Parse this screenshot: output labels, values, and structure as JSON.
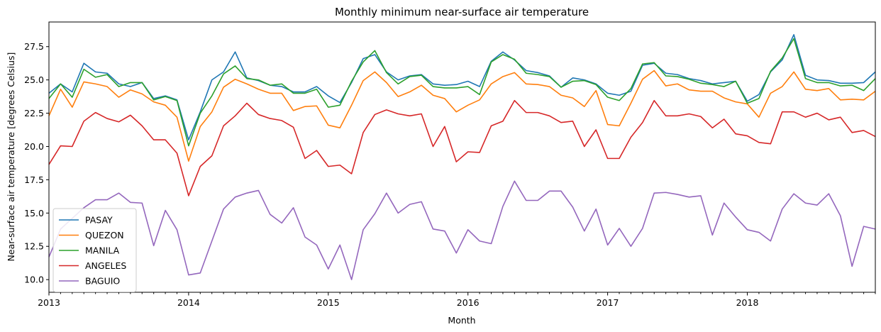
{
  "chart_data": {
    "type": "line",
    "title": "Monthly minimum near-surface air temperature",
    "xlabel": "Month",
    "ylabel": "Near-surface air temperature [degrees Celsius]",
    "x_start": "2013-01",
    "x_tick_labels": [
      "2013",
      "2014",
      "2015",
      "2016",
      "2017",
      "2018"
    ],
    "y_ticks": [
      10.0,
      12.5,
      15.0,
      17.5,
      20.0,
      22.5,
      25.0,
      27.5
    ],
    "y_tick_labels": [
      "10.0",
      "12.5",
      "15.0",
      "17.5",
      "20.0",
      "22.5",
      "25.0",
      "27.5"
    ],
    "ylim": [
      9.05,
      29.35
    ],
    "xlim": [
      "2013-01",
      "2018-12"
    ],
    "grid": false,
    "legend_position": "lower-left",
    "series": [
      {
        "name": "PASAY",
        "color": "#1f77b4",
        "values": [
          24.0,
          24.7,
          24.1,
          26.25,
          25.6,
          25.5,
          24.7,
          24.5,
          24.8,
          23.6,
          23.8,
          23.5,
          20.5,
          22.6,
          25.0,
          25.6,
          27.1,
          25.15,
          24.95,
          24.6,
          24.5,
          24.1,
          24.1,
          24.5,
          23.8,
          23.3,
          24.8,
          26.6,
          26.9,
          25.6,
          25.0,
          25.3,
          25.4,
          24.7,
          24.6,
          24.65,
          24.9,
          24.5,
          26.4,
          27.1,
          26.5,
          25.7,
          25.55,
          25.3,
          24.45,
          25.15,
          25.0,
          24.7,
          24.0,
          23.85,
          24.15,
          26.1,
          26.25,
          25.5,
          25.4,
          25.1,
          24.95,
          24.7,
          24.8,
          24.9,
          23.4,
          23.9,
          25.6,
          26.5,
          28.4,
          25.35,
          25.0,
          24.95,
          24.75,
          24.75,
          24.8,
          25.6
        ]
      },
      {
        "name": "QUEZON",
        "color": "#ff7f0e",
        "values": [
          22.3,
          24.3,
          22.95,
          24.85,
          24.7,
          24.5,
          23.7,
          24.25,
          23.95,
          23.35,
          23.1,
          22.2,
          18.9,
          21.5,
          22.6,
          24.45,
          25.05,
          24.7,
          24.3,
          24.0,
          24.0,
          22.7,
          23.0,
          23.05,
          21.6,
          21.4,
          23.1,
          24.95,
          25.6,
          24.8,
          23.75,
          24.1,
          24.6,
          23.85,
          23.6,
          22.6,
          23.1,
          23.5,
          24.7,
          25.25,
          25.55,
          24.7,
          24.65,
          24.5,
          23.85,
          23.65,
          23.0,
          24.2,
          21.65,
          21.55,
          23.25,
          25.05,
          25.7,
          24.55,
          24.7,
          24.25,
          24.15,
          24.15,
          23.65,
          23.35,
          23.2,
          22.2,
          24.0,
          24.5,
          25.6,
          24.3,
          24.2,
          24.35,
          23.5,
          23.55,
          23.5,
          24.15
        ]
      },
      {
        "name": "MANILA",
        "color": "#2ca02c",
        "values": [
          23.6,
          24.7,
          23.7,
          25.8,
          25.2,
          25.4,
          24.5,
          24.8,
          24.8,
          23.5,
          23.75,
          23.45,
          20.05,
          22.5,
          23.8,
          25.45,
          26.05,
          25.1,
          25.0,
          24.6,
          24.7,
          24.0,
          24.0,
          24.3,
          22.95,
          23.1,
          24.9,
          26.35,
          27.2,
          25.55,
          24.7,
          25.25,
          25.35,
          24.5,
          24.4,
          24.4,
          24.5,
          23.9,
          26.35,
          26.9,
          26.55,
          25.5,
          25.4,
          25.25,
          24.45,
          24.9,
          24.95,
          24.65,
          23.7,
          23.45,
          24.35,
          26.2,
          26.3,
          25.3,
          25.25,
          25.05,
          24.75,
          24.65,
          24.5,
          24.9,
          23.25,
          23.6,
          25.65,
          26.65,
          28.1,
          25.1,
          24.8,
          24.8,
          24.55,
          24.6,
          24.2,
          25.1
        ]
      },
      {
        "name": "ANGELES",
        "color": "#d62728",
        "values": [
          18.65,
          20.05,
          20.0,
          21.9,
          22.55,
          22.1,
          21.85,
          22.35,
          21.55,
          20.5,
          20.5,
          19.5,
          16.3,
          18.5,
          19.3,
          21.55,
          22.3,
          23.25,
          22.4,
          22.1,
          21.95,
          21.45,
          19.1,
          19.7,
          18.5,
          18.6,
          17.95,
          21.05,
          22.4,
          22.75,
          22.45,
          22.3,
          22.45,
          20.0,
          21.5,
          18.85,
          19.6,
          19.55,
          21.55,
          21.9,
          23.45,
          22.55,
          22.55,
          22.3,
          21.8,
          21.9,
          20.0,
          21.25,
          19.1,
          19.1,
          20.7,
          21.8,
          23.45,
          22.3,
          22.3,
          22.45,
          22.25,
          21.4,
          22.05,
          20.95,
          20.8,
          20.3,
          20.2,
          22.6,
          22.6,
          22.2,
          22.5,
          22.0,
          22.2,
          21.05,
          21.2,
          20.75
        ]
      },
      {
        "name": "BAGUIO",
        "color": "#9467bd",
        "values": [
          11.7,
          13.8,
          14.6,
          15.4,
          16.0,
          16.0,
          16.5,
          15.8,
          15.75,
          12.55,
          15.2,
          13.75,
          10.35,
          10.5,
          12.9,
          15.3,
          16.2,
          16.5,
          16.7,
          14.9,
          14.25,
          15.4,
          13.2,
          12.6,
          10.8,
          12.6,
          10.0,
          13.75,
          14.95,
          16.5,
          15.0,
          15.65,
          15.85,
          13.8,
          13.65,
          12.0,
          13.75,
          12.9,
          12.7,
          15.5,
          17.4,
          15.95,
          15.95,
          16.65,
          16.65,
          15.45,
          13.65,
          15.3,
          12.6,
          13.85,
          12.5,
          13.85,
          16.5,
          16.55,
          16.4,
          16.2,
          16.3,
          13.35,
          15.75,
          14.7,
          13.75,
          13.55,
          12.9,
          15.3,
          16.45,
          15.75,
          15.6,
          16.45,
          14.8,
          11.0,
          14.0,
          13.8
        ]
      }
    ]
  }
}
